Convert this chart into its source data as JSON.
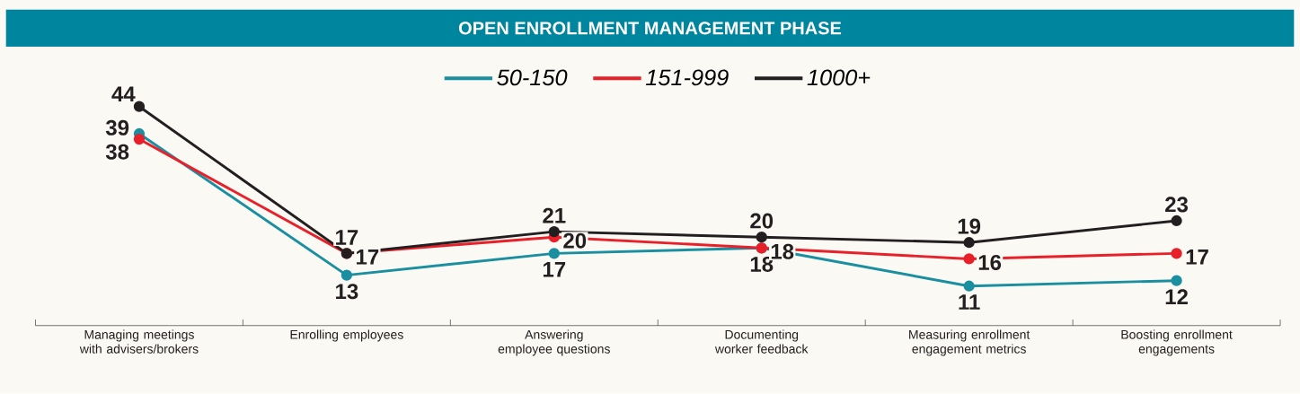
{
  "chart_data": {
    "type": "line",
    "title": "OPEN ENROLLMENT MANAGEMENT PHASE",
    "categories": [
      "Managing meetings with advisers/brokers",
      "Enrolling employees",
      "Answering employee questions",
      "Documenting worker feedback",
      "Measuring enrollment engagement metrics",
      "Boosting enrollment engagements"
    ],
    "series": [
      {
        "name": "50-150",
        "color": "#1a8fa0",
        "values": [
          39,
          13,
          17,
          18,
          11,
          12
        ]
      },
      {
        "name": "151-999",
        "color": "#e8202a",
        "values": [
          38,
          17,
          20,
          18,
          16,
          17
        ]
      },
      {
        "name": "1000+",
        "color": "#231f20",
        "values": [
          44,
          17,
          21,
          20,
          19,
          23
        ]
      }
    ],
    "data_labels": true,
    "legend": "top",
    "marker": "circle"
  }
}
